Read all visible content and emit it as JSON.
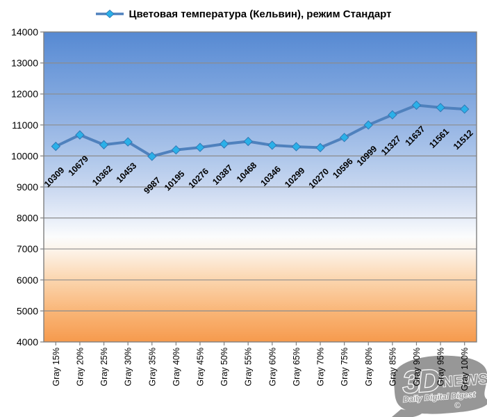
{
  "legend": {
    "label": "Цветовая температура (Кельвин), режим Стандарт"
  },
  "chart_data": {
    "type": "line",
    "title": "Цветовая температура (Кельвин), режим Стандарт",
    "categories": [
      "Gray 15%",
      "Gray 20%",
      "Gray 25%",
      "Gray 30%",
      "Gray 35%",
      "Gray 40%",
      "Gray 45%",
      "Gray 50%",
      "Gray 55%",
      "Gray 60%",
      "Gray 65%",
      "Gray 70%",
      "Gray 75%",
      "Gray 80%",
      "Gray 85%",
      "Gray 90%",
      "Gray 95%",
      "Gray 100%"
    ],
    "series": [
      {
        "name": "Цветовая температура (Кельвин), режим Стандарт",
        "values": [
          10309,
          10679,
          10362,
          10453,
          9987,
          10195,
          10276,
          10387,
          10468,
          10346,
          10299,
          10270,
          10596,
          10999,
          11327,
          11637,
          11561,
          11512
        ]
      }
    ],
    "xlabel": "",
    "ylabel": "",
    "ylim": [
      4000,
      14000
    ],
    "yticks": [
      4000,
      5000,
      6000,
      7000,
      8000,
      9000,
      10000,
      11000,
      12000,
      13000,
      14000
    ],
    "grid": "horizontal",
    "legend_position": "top",
    "data_labels": true,
    "marker": "diamond",
    "colors": {
      "line": "#4f81bd",
      "marker": "#2bb0e8",
      "marker_border": "#3179b5",
      "grid": "#8c8c8c",
      "plot_border": "#7f7f7f",
      "axis_text": "#000000",
      "data_label_text": "#000000",
      "watermark_gray": "#8f8f8f"
    },
    "plot_bg_gradient": [
      {
        "pos": 0.0,
        "color": "#5689d2"
      },
      {
        "pos": 0.1,
        "color": "#6b98d9"
      },
      {
        "pos": 0.2,
        "color": "#7fa6de"
      },
      {
        "pos": 0.3,
        "color": "#96b5e4"
      },
      {
        "pos": 0.4,
        "color": "#adc6ea"
      },
      {
        "pos": 0.5,
        "color": "#c8d7f0"
      },
      {
        "pos": 0.6,
        "color": "#e7edf8"
      },
      {
        "pos": 0.66,
        "color": "#fbfcfd"
      },
      {
        "pos": 0.7,
        "color": "#fdf5ec"
      },
      {
        "pos": 0.8,
        "color": "#fbd5ae"
      },
      {
        "pos": 0.9,
        "color": "#f9b678"
      },
      {
        "pos": 1.0,
        "color": "#f69a4d"
      }
    ]
  },
  "watermark": {
    "brand_3d": "3D",
    "brand_news": "NEWS",
    "tagline": "Daily Digital Digest",
    "copyright": "©"
  }
}
